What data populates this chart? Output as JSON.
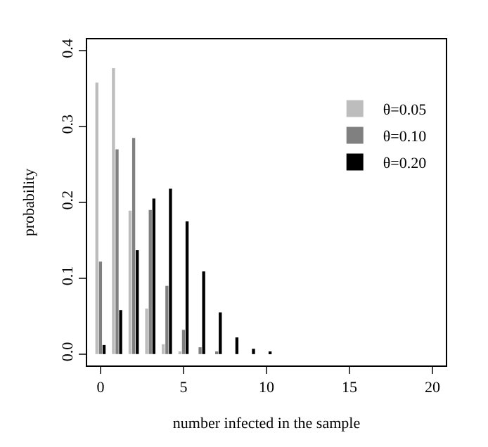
{
  "chart_data": {
    "type": "bar",
    "xlabel": "number infected in the sample",
    "ylabel": "probability",
    "x": [
      0,
      1,
      2,
      3,
      4,
      5,
      6,
      7,
      8,
      9,
      10,
      11,
      12,
      13,
      14,
      15,
      16,
      17,
      18,
      19,
      20
    ],
    "series": [
      {
        "name": "θ=0.05",
        "color": "#bdbdbd",
        "values": [
          0.358,
          0.377,
          0.189,
          0.06,
          0.013,
          0.002,
          0,
          0,
          0,
          0,
          0,
          0,
          0,
          0,
          0,
          0,
          0,
          0,
          0,
          0,
          0
        ]
      },
      {
        "name": "θ=0.10",
        "color": "#808080",
        "values": [
          0.122,
          0.27,
          0.285,
          0.19,
          0.09,
          0.032,
          0.009,
          0.002,
          0,
          0,
          0,
          0,
          0,
          0,
          0,
          0,
          0,
          0,
          0,
          0,
          0
        ]
      },
      {
        "name": "θ=0.20",
        "color": "#000000",
        "values": [
          0.012,
          0.058,
          0.137,
          0.205,
          0.218,
          0.175,
          0.109,
          0.055,
          0.022,
          0.007,
          0.002,
          0,
          0,
          0,
          0,
          0,
          0,
          0,
          0,
          0,
          0
        ]
      }
    ],
    "xlim": [
      -0.8,
      20.8
    ],
    "xticks": [
      0,
      5,
      10,
      15,
      20
    ],
    "ylim": [
      -0.015,
      0.415
    ],
    "yticks": [
      {
        "value": 0,
        "label": "0.0"
      },
      {
        "value": 0.1,
        "label": "0.1"
      },
      {
        "value": 0.2,
        "label": "0.2"
      },
      {
        "value": 0.3,
        "label": "0.3"
      },
      {
        "value": 0.4,
        "label": "0.4"
      }
    ],
    "legend": "top right"
  }
}
